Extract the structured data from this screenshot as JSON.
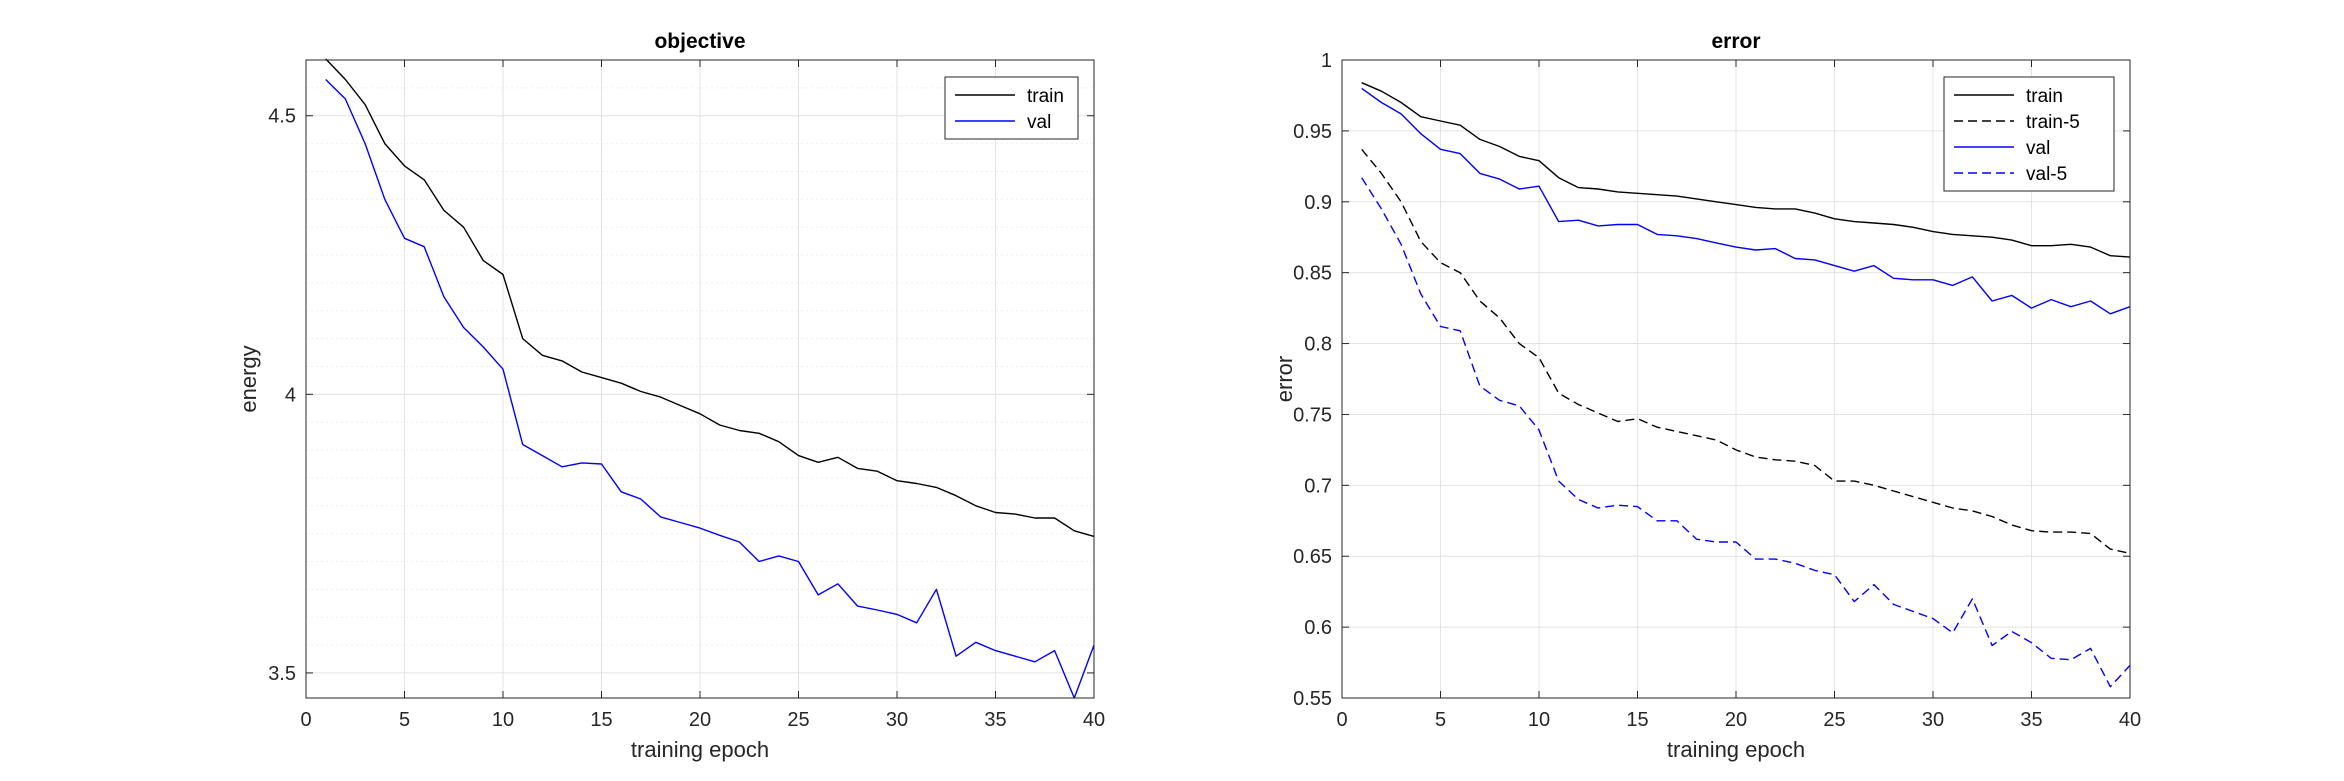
{
  "chart_data": [
    {
      "type": "line",
      "title": "objective",
      "xlabel": "training epoch",
      "ylabel": "energy",
      "xlim": [
        0,
        40
      ],
      "ylim": [
        3.455,
        4.6
      ],
      "xticks": [
        0,
        5,
        10,
        15,
        20,
        25,
        30,
        35,
        40
      ],
      "yticks": [
        3.5,
        4,
        4.5
      ],
      "grid": "on",
      "minor_grid": "on",
      "legend": "top-right",
      "x": [
        1,
        2,
        3,
        4,
        5,
        6,
        7,
        8,
        9,
        10,
        11,
        12,
        13,
        14,
        15,
        16,
        17,
        18,
        19,
        20,
        21,
        22,
        23,
        24,
        25,
        26,
        27,
        28,
        29,
        30,
        31,
        32,
        33,
        34,
        35,
        36,
        37,
        38,
        39,
        40
      ],
      "series": [
        {
          "name": "train",
          "color": "#000000",
          "style": "solid",
          "values": [
            4.602,
            4.565,
            4.52,
            4.45,
            4.41,
            4.385,
            4.33,
            4.3,
            4.24,
            4.215,
            4.1,
            4.07,
            4.06,
            4.04,
            4.03,
            4.02,
            4.005,
            3.995,
            3.98,
            3.965,
            3.945,
            3.935,
            3.93,
            3.915,
            3.89,
            3.878,
            3.887,
            3.867,
            3.862,
            3.845,
            3.84,
            3.833,
            3.818,
            3.8,
            3.788,
            3.785,
            3.778,
            3.778,
            3.755,
            3.745
          ]
        },
        {
          "name": "val",
          "color": "#0000ff",
          "style": "solid",
          "values": [
            4.565,
            4.53,
            4.45,
            4.35,
            4.28,
            4.265,
            4.175,
            4.12,
            4.085,
            4.045,
            3.91,
            3.89,
            3.87,
            3.877,
            3.875,
            3.825,
            3.812,
            3.78,
            3.77,
            3.76,
            3.747,
            3.735,
            3.7,
            3.71,
            3.7,
            3.64,
            3.66,
            3.62,
            3.613,
            3.605,
            3.59,
            3.65,
            3.53,
            3.555,
            3.54,
            3.53,
            3.52,
            3.54,
            3.455,
            3.55
          ]
        }
      ]
    },
    {
      "type": "line",
      "title": "error",
      "xlabel": "training epoch",
      "ylabel": "error",
      "xlim": [
        0,
        40
      ],
      "ylim": [
        0.55,
        1
      ],
      "xticks": [
        0,
        5,
        10,
        15,
        20,
        25,
        30,
        35,
        40
      ],
      "yticks": [
        0.55,
        0.6,
        0.65,
        0.7,
        0.75,
        0.8,
        0.85,
        0.9,
        0.95,
        1
      ],
      "grid": "on",
      "minor_grid": "off",
      "legend": "top-right",
      "x": [
        1,
        2,
        3,
        4,
        5,
        6,
        7,
        8,
        9,
        10,
        11,
        12,
        13,
        14,
        15,
        16,
        17,
        18,
        19,
        20,
        21,
        22,
        23,
        24,
        25,
        26,
        27,
        28,
        29,
        30,
        31,
        32,
        33,
        34,
        35,
        36,
        37,
        38,
        39,
        40
      ],
      "series": [
        {
          "name": "train",
          "color": "#000000",
          "style": "solid",
          "values": [
            0.984,
            0.978,
            0.97,
            0.96,
            0.957,
            0.954,
            0.944,
            0.939,
            0.932,
            0.929,
            0.917,
            0.91,
            0.909,
            0.907,
            0.906,
            0.905,
            0.904,
            0.902,
            0.9,
            0.898,
            0.896,
            0.895,
            0.895,
            0.892,
            0.888,
            0.886,
            0.885,
            0.884,
            0.882,
            0.879,
            0.877,
            0.876,
            0.875,
            0.873,
            0.869,
            0.869,
            0.87,
            0.868,
            0.862,
            0.861
          ]
        },
        {
          "name": "train-5",
          "color": "#000000",
          "style": "dashed",
          "values": [
            0.937,
            0.92,
            0.9,
            0.872,
            0.857,
            0.85,
            0.83,
            0.818,
            0.8,
            0.79,
            0.765,
            0.757,
            0.751,
            0.745,
            0.747,
            0.741,
            0.738,
            0.735,
            0.732,
            0.725,
            0.72,
            0.718,
            0.717,
            0.714,
            0.703,
            0.703,
            0.7,
            0.696,
            0.692,
            0.688,
            0.684,
            0.682,
            0.678,
            0.672,
            0.668,
            0.667,
            0.667,
            0.666,
            0.655,
            0.652
          ]
        },
        {
          "name": "val",
          "color": "#0000ff",
          "style": "solid",
          "values": [
            0.98,
            0.97,
            0.962,
            0.948,
            0.937,
            0.934,
            0.92,
            0.916,
            0.909,
            0.911,
            0.886,
            0.887,
            0.883,
            0.884,
            0.884,
            0.877,
            0.876,
            0.874,
            0.871,
            0.868,
            0.866,
            0.867,
            0.86,
            0.859,
            0.855,
            0.851,
            0.855,
            0.846,
            0.845,
            0.845,
            0.841,
            0.847,
            0.83,
            0.834,
            0.825,
            0.831,
            0.826,
            0.83,
            0.821,
            0.826
          ]
        },
        {
          "name": "val-5",
          "color": "#0000ff",
          "style": "dashed",
          "values": [
            0.917,
            0.895,
            0.87,
            0.835,
            0.812,
            0.809,
            0.77,
            0.76,
            0.756,
            0.739,
            0.703,
            0.69,
            0.684,
            0.686,
            0.685,
            0.675,
            0.675,
            0.662,
            0.66,
            0.66,
            0.648,
            0.648,
            0.645,
            0.64,
            0.637,
            0.618,
            0.63,
            0.616,
            0.611,
            0.606,
            0.596,
            0.62,
            0.587,
            0.597,
            0.589,
            0.578,
            0.577,
            0.585,
            0.558,
            0.573
          ]
        }
      ]
    }
  ]
}
